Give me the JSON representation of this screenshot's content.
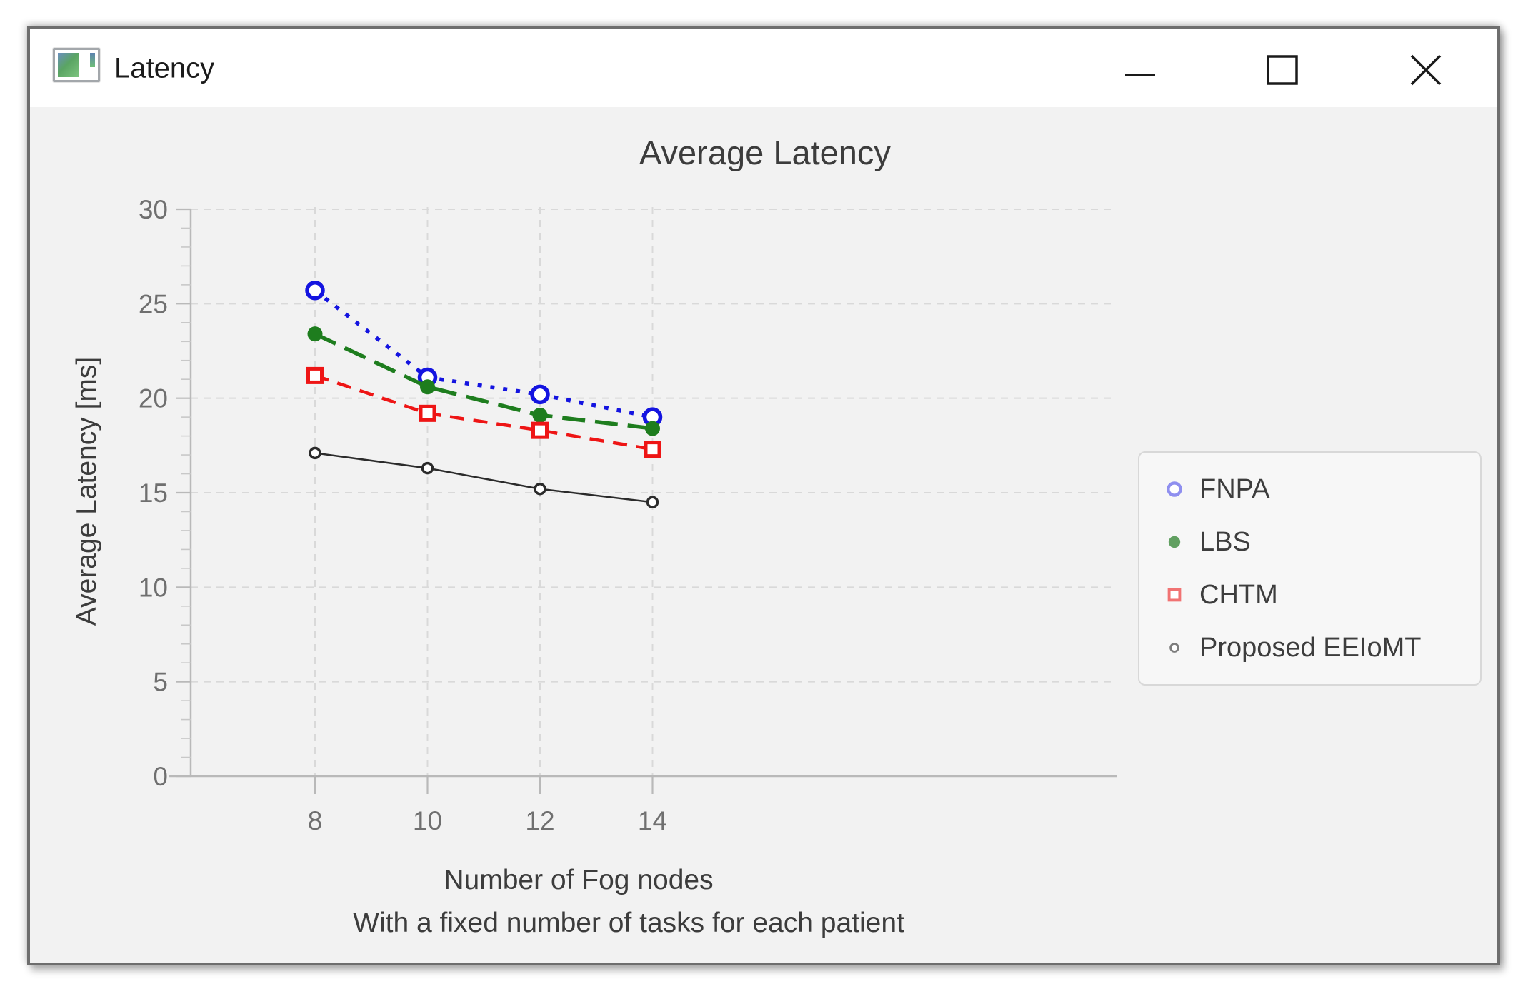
{
  "window": {
    "title": "Latency",
    "controls": {
      "minimize": "minimize",
      "maximize": "maximize",
      "close": "close"
    }
  },
  "chart_data": {
    "type": "line",
    "title": "Average Latency",
    "xlabel": "Number of Fog nodes",
    "xlabel_line2": "With a fixed number of tasks for each patient",
    "ylabel": "Average Latency [ms]",
    "x": [
      8,
      10,
      12,
      14
    ],
    "xticks": [
      8,
      10,
      12,
      14
    ],
    "yticks": [
      0,
      5,
      10,
      15,
      20,
      25,
      30
    ],
    "xlim": [
      6.75,
      15.1
    ],
    "ylim": [
      0,
      30
    ],
    "grid": true,
    "grid_style": "dashed",
    "legend_position": "right",
    "colors": {
      "plot_bg": "#f2f2f2",
      "grid": "#d9d9d9",
      "axis": "#b9b9b9",
      "tick_label": "#6f6f6f",
      "text": "#3c3c3c"
    },
    "series": [
      {
        "name": "FNPA",
        "values": [
          25.7,
          21.1,
          20.2,
          19.0
        ],
        "color": "#1414e0",
        "legend_color": "#8f8fef",
        "line": "dotted",
        "marker": "open-circle"
      },
      {
        "name": "LBS",
        "values": [
          23.4,
          20.6,
          19.1,
          18.4
        ],
        "color": "#1e7d1e",
        "legend_color": "#61a061",
        "line": "long-dash",
        "marker": "filled-circle"
      },
      {
        "name": "CHTM",
        "values": [
          21.2,
          19.2,
          18.3,
          17.3
        ],
        "color": "#ee1515",
        "legend_color": "#f17373",
        "line": "dash",
        "marker": "open-square"
      },
      {
        "name": "Proposed EEIoMT",
        "values": [
          17.1,
          16.3,
          15.2,
          14.5
        ],
        "color": "#2b2b2b",
        "legend_color": "#7d7d7d",
        "line": "solid",
        "marker": "small-open-circle"
      }
    ]
  }
}
